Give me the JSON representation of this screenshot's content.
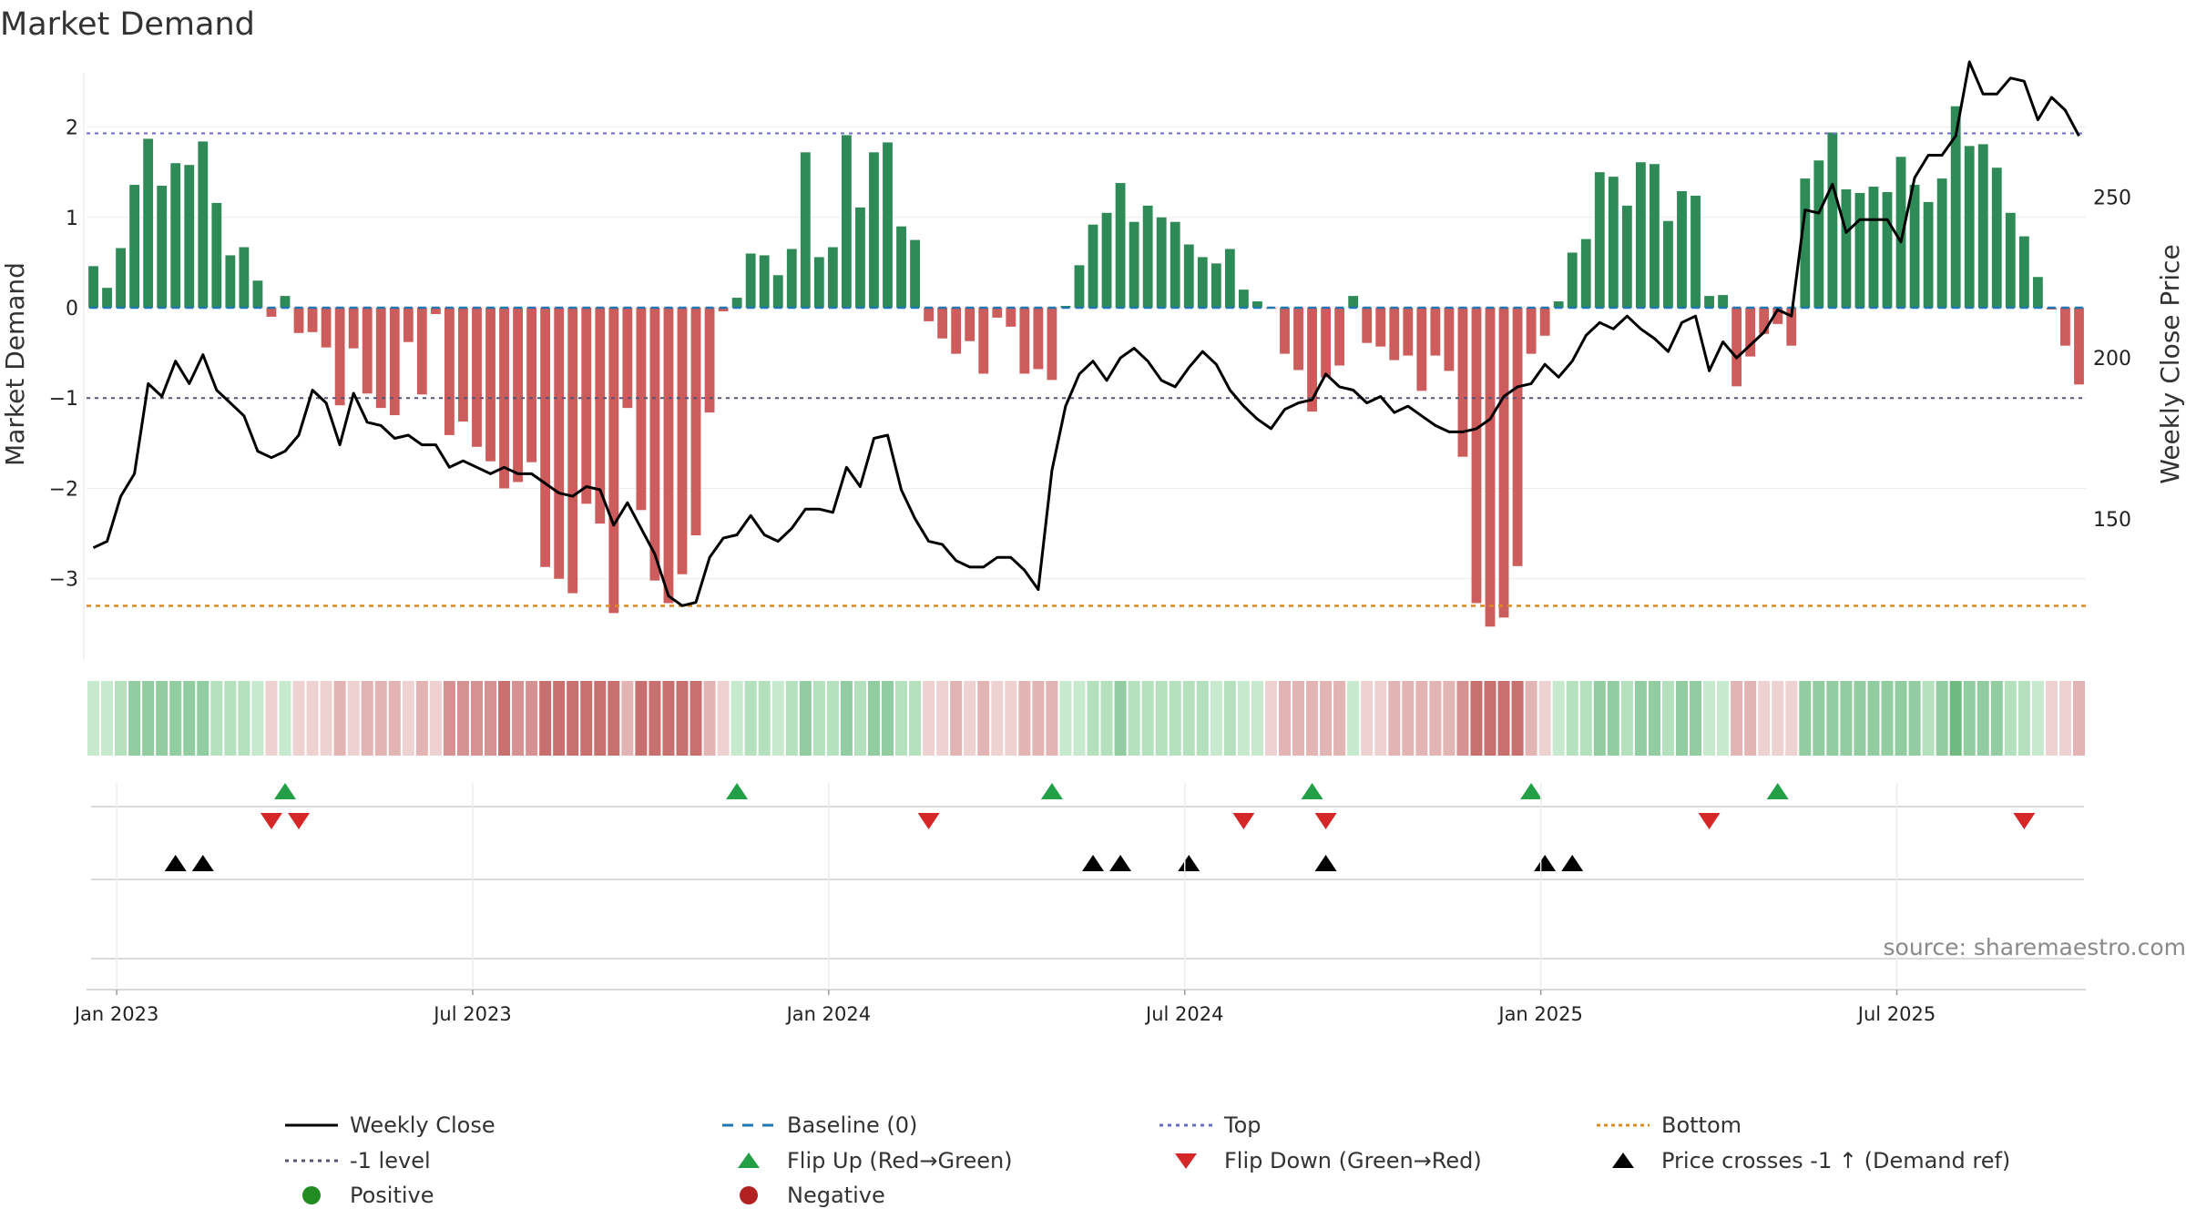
{
  "chart_data": {
    "type": "bar",
    "title": "Market Demand",
    "ylabel": "Market Demand",
    "y2label": "Weekly Close Price",
    "source": "source: sharemaestro.com",
    "ylim": [
      -3.9,
      2.6
    ],
    "yticks": [
      2,
      1,
      0,
      -1,
      -2,
      -3
    ],
    "ytick_labels": [
      "2",
      "1",
      "0",
      "−1",
      "−2",
      "−3"
    ],
    "y2lim": [
      106.1,
      288.6
    ],
    "y2ticks": [
      250,
      200,
      150
    ],
    "y2tick_labels": [
      "250",
      "200",
      "150"
    ],
    "xticks": [
      2,
      28,
      54,
      80,
      106,
      132
    ],
    "xtick_labels": [
      "Jan 2023",
      "Jul 2023",
      "Jan 2024",
      "Jul 2024",
      "Jan 2025",
      "Jul 2025"
    ],
    "levels": {
      "top": 1.93,
      "minus_one": -1.0,
      "bottom": -3.3,
      "baseline": 0
    },
    "demand": [
      0.46,
      0.22,
      0.66,
      1.36,
      1.87,
      1.35,
      1.6,
      1.58,
      1.84,
      1.16,
      0.58,
      0.67,
      0.3,
      -0.1,
      0.13,
      -0.28,
      -0.27,
      -0.44,
      -1.08,
      -0.45,
      -0.95,
      -1.11,
      -1.19,
      -0.38,
      -0.96,
      -0.07,
      -1.41,
      -1.26,
      -1.54,
      -1.7,
      -2.0,
      -1.93,
      -1.71,
      -2.87,
      -3.0,
      -3.16,
      -2.17,
      -2.39,
      -3.38,
      -1.11,
      -2.24,
      -3.02,
      -3.27,
      -2.95,
      -2.52,
      -1.16,
      -0.04,
      0.11,
      0.6,
      0.58,
      0.36,
      0.65,
      1.72,
      0.56,
      0.67,
      1.91,
      1.11,
      1.72,
      1.83,
      0.9,
      0.75,
      -0.15,
      -0.34,
      -0.51,
      -0.37,
      -0.73,
      -0.11,
      -0.21,
      -0.73,
      -0.68,
      -0.8,
      0.02,
      0.47,
      0.92,
      1.05,
      1.38,
      0.95,
      1.13,
      1.0,
      0.95,
      0.7,
      0.56,
      0.49,
      0.65,
      0.2,
      0.07,
      -0.01,
      -0.51,
      -0.69,
      -1.15,
      -0.77,
      -0.64,
      0.13,
      -0.39,
      -0.43,
      -0.58,
      -0.53,
      -0.92,
      -0.53,
      -0.7,
      -1.65,
      -3.27,
      -3.53,
      -3.43,
      -2.86,
      -0.51,
      -0.31,
      0.07,
      0.61,
      0.76,
      1.5,
      1.45,
      1.13,
      1.61,
      1.59,
      0.96,
      1.29,
      1.24,
      0.13,
      0.14,
      -0.87,
      -0.54,
      -0.29,
      -0.18,
      -0.42,
      1.43,
      1.63,
      1.94,
      1.31,
      1.27,
      1.34,
      1.28,
      1.67,
      1.36,
      1.17,
      1.43,
      2.23,
      1.79,
      1.81,
      1.55,
      1.05,
      0.79,
      0.34,
      -0.02,
      -0.42,
      -0.85
    ],
    "close": [
      141,
      143,
      157,
      164,
      192,
      188,
      199,
      192,
      201,
      190,
      186,
      182,
      171,
      169,
      171,
      176,
      190,
      186,
      173,
      189,
      180,
      179,
      175,
      176,
      173,
      173,
      166,
      168,
      166,
      164,
      166,
      164,
      164,
      161,
      158,
      157,
      160,
      159,
      148,
      155,
      147,
      139,
      126,
      123,
      124,
      138,
      144,
      145,
      151,
      145,
      143,
      147,
      153,
      153,
      152,
      166,
      160,
      175,
      176,
      159,
      150,
      143,
      142,
      137,
      135,
      135,
      138,
      138,
      134,
      128,
      165,
      185,
      195,
      199,
      193,
      200,
      203,
      199,
      193,
      191,
      197,
      202,
      198,
      190,
      185,
      181,
      178,
      184,
      186,
      187,
      195,
      191,
      190,
      186,
      188,
      183,
      185,
      182,
      179,
      177,
      177,
      178,
      181,
      188,
      191,
      192,
      198,
      194,
      199,
      207,
      211,
      209,
      213,
      209,
      206,
      202,
      211,
      213,
      196,
      205,
      200,
      204,
      208,
      215,
      213,
      246,
      245,
      254,
      239,
      243,
      243,
      243,
      236,
      256,
      263,
      263,
      269,
      292,
      282,
      282,
      287,
      286,
      274,
      281,
      277,
      269
    ],
    "markers": {
      "flip_up": [
        14,
        47,
        70,
        89,
        105,
        123
      ],
      "flip_down": [
        13,
        15,
        61,
        84,
        90,
        118,
        141
      ],
      "price_cross": [
        6,
        8,
        73,
        75,
        80,
        90,
        106,
        108
      ]
    },
    "legend": [
      [
        "Weekly Close",
        "Baseline (0)",
        "Top",
        "Bottom"
      ],
      [
        "-1 level",
        "Flip Up (Red→Green)",
        "Flip Down (Green→Red)",
        "Price crosses -1 ↑ (Demand ref)"
      ],
      [
        "Positive",
        "Negative"
      ]
    ],
    "colors": {
      "positive": "#2e8b57",
      "negative": "#cd5c5c",
      "close": "#000000",
      "baseline": "#1f77b4",
      "top": "#6a6acd",
      "minus_one": "#555577",
      "bottom": "#e08a1e",
      "flip_up": "#23a047",
      "flip_down": "#d62728",
      "cross": "#000000",
      "legend_positive": "#228b22",
      "legend_negative": "#b22222"
    }
  }
}
